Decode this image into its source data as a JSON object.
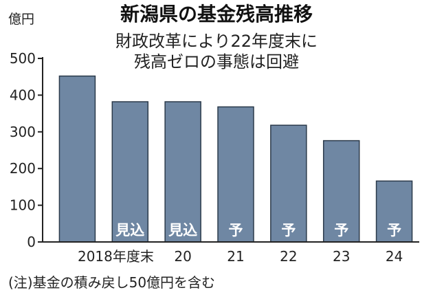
{
  "chart_data": {
    "type": "bar",
    "title": "新潟県の基金残高推移",
    "subtitle_lines": [
      "財政改革により22年度末に",
      "残高ゼロの事態は回避"
    ],
    "ylabel": "億円",
    "ylim": [
      0,
      500
    ],
    "yticks": [
      0,
      100,
      200,
      300,
      400,
      500
    ],
    "categories": [
      "2018年度末",
      "",
      "20",
      "21",
      "22",
      "23",
      "24"
    ],
    "values": [
      452,
      382,
      382,
      368,
      318,
      276,
      166
    ],
    "bar_labels": [
      "",
      "見込",
      "見込",
      "予",
      "予",
      "予",
      "予"
    ],
    "grid": false,
    "bar_color": "#6f87a3",
    "bar_stroke": "#2b3a4a",
    "note": "(注)基金の積み戻し50億円を含む"
  }
}
